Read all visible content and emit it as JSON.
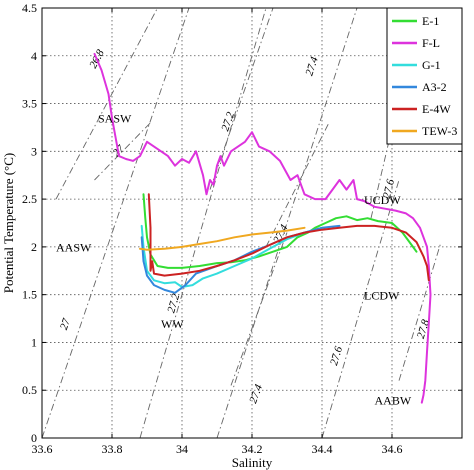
{
  "chart_data": {
    "type": "line",
    "xlabel": "Salinity",
    "ylabel": "Potential Temperature (°C)",
    "xlim": [
      33.6,
      34.8
    ],
    "ylim": [
      0,
      4.5
    ],
    "xticks": [
      "33.6",
      "33.8",
      "34",
      "34.2",
      "34.4",
      "34.6"
    ],
    "yticks": [
      "0",
      "0.5",
      "1",
      "1.5",
      "2",
      "2.5",
      "3",
      "3.5",
      "4",
      "4.5"
    ],
    "grid": true,
    "legend_position": "top-right",
    "water_mass_labels": [
      {
        "text": "SASW",
        "x": 33.76,
        "y": 3.3
      },
      {
        "text": "AASW",
        "x": 33.64,
        "y": 1.95
      },
      {
        "text": "WW",
        "x": 33.94,
        "y": 1.15
      },
      {
        "text": "UCDW",
        "x": 34.52,
        "y": 2.45
      },
      {
        "text": "LCDW",
        "x": 34.52,
        "y": 1.45
      },
      {
        "text": "AABW",
        "x": 34.55,
        "y": 0.35
      }
    ],
    "isopycnals": [
      {
        "label": "26.8",
        "x0": 33.64,
        "y0": 2.5,
        "x1": 33.93,
        "y1": 4.5,
        "lx": 33.765,
        "ly": 3.95
      },
      {
        "label": "27",
        "x0": 33.6,
        "y0": 0,
        "x1": 34.02,
        "y1": 4.5,
        "lx": 33.675,
        "ly": 1.18
      },
      {
        "label": "27",
        "x0": 33.75,
        "y0": 2.7,
        "x1": 33.91,
        "y1": 3.3,
        "lx": 33.825,
        "ly": 2.98
      },
      {
        "label": "27.2",
        "x0": 33.88,
        "y0": 0,
        "x1": 34.24,
        "y1": 4.5,
        "lx": 33.985,
        "ly": 1.4
      },
      {
        "label": "27.2",
        "x0": 34.08,
        "y0": 2.6,
        "x1": 34.26,
        "y1": 4.5,
        "lx": 34.14,
        "ly": 3.3
      },
      {
        "label": "27.4",
        "x0": 34.1,
        "y0": 0,
        "x1": 34.5,
        "y1": 4.5,
        "lx": 34.38,
        "ly": 3.88
      },
      {
        "label": "27.4",
        "x0": 34.14,
        "y0": 0.55,
        "x1": 34.3,
        "y1": 2.15,
        "lx": 34.22,
        "ly": 0.45
      },
      {
        "label": "27.4",
        "x0": 34.24,
        "y0": 2.0,
        "x1": 34.42,
        "y1": 3.3,
        "lx": 34.29,
        "ly": 2.12
      },
      {
        "label": "27.6",
        "x0": 34.4,
        "y0": 0,
        "x1": 34.62,
        "y1": 2.7,
        "lx": 34.45,
        "ly": 0.85
      },
      {
        "label": "27.6",
        "x0": 34.54,
        "y0": 2.3,
        "x1": 34.68,
        "y1": 4.5,
        "lx": 34.6,
        "ly": 2.6
      },
      {
        "label": "27.8",
        "x0": 34.62,
        "y0": 0.6,
        "x1": 34.74,
        "y1": 2.05,
        "lx": 34.698,
        "ly": 1.13
      }
    ],
    "series": [
      {
        "name": "E-1",
        "color": "#33dd33",
        "x": [
          33.89,
          33.895,
          33.9,
          33.91,
          33.93,
          33.96,
          34.0,
          34.05,
          34.1,
          34.14,
          34.18,
          34.22,
          34.26,
          34.3,
          34.33,
          34.36,
          34.38,
          34.41,
          34.44,
          34.47,
          34.5,
          34.53,
          34.56,
          34.6,
          34.63,
          34.66,
          34.67
        ],
        "y": [
          2.55,
          2.3,
          2.1,
          1.92,
          1.8,
          1.78,
          1.78,
          1.8,
          1.83,
          1.84,
          1.86,
          1.9,
          1.95,
          2.0,
          2.1,
          2.15,
          2.2,
          2.25,
          2.3,
          2.32,
          2.28,
          2.3,
          2.27,
          2.25,
          2.15,
          2.0,
          1.95
        ]
      },
      {
        "name": "F-L",
        "color": "#dd33dd",
        "x": [
          33.75,
          33.77,
          33.79,
          33.8,
          33.81,
          33.82,
          33.84,
          33.86,
          33.88,
          33.9,
          33.92,
          33.94,
          33.96,
          33.98,
          34.0,
          34.02,
          34.04,
          34.06,
          34.07,
          34.08,
          34.09,
          34.1,
          34.11,
          34.12,
          34.14,
          34.16,
          34.18,
          34.2,
          34.22,
          34.25,
          34.28,
          34.31,
          34.33,
          34.35,
          34.38,
          34.41,
          34.43,
          34.45,
          34.47,
          34.49,
          34.5,
          34.52,
          34.55,
          34.58,
          34.61,
          34.64,
          34.66,
          34.68,
          34.69,
          34.7,
          34.705,
          34.71,
          34.705,
          34.7,
          34.695,
          34.69,
          34.685
        ],
        "y": [
          4.02,
          3.85,
          3.6,
          3.35,
          3.15,
          2.95,
          2.92,
          2.9,
          2.95,
          3.1,
          3.05,
          3.0,
          2.95,
          2.85,
          2.92,
          2.88,
          3.0,
          2.75,
          2.55,
          2.7,
          2.65,
          2.85,
          2.95,
          2.85,
          3.0,
          3.05,
          3.1,
          3.2,
          3.05,
          3.0,
          2.9,
          2.7,
          2.75,
          2.55,
          2.5,
          2.5,
          2.6,
          2.7,
          2.6,
          2.7,
          2.5,
          2.48,
          2.42,
          2.4,
          2.38,
          2.35,
          2.3,
          2.2,
          2.1,
          2.0,
          1.8,
          1.5,
          1.2,
          0.9,
          0.6,
          0.45,
          0.37
        ]
      },
      {
        "name": "G-1",
        "color": "#33dddd",
        "x": [
          33.885,
          33.89,
          33.9,
          33.92,
          33.95,
          33.98,
          34.0,
          34.03,
          34.06,
          34.1,
          34.15,
          34.2,
          34.25,
          34.3,
          34.35,
          34.4
        ],
        "y": [
          2.22,
          2.0,
          1.75,
          1.65,
          1.62,
          1.63,
          1.58,
          1.6,
          1.67,
          1.72,
          1.8,
          1.88,
          1.98,
          2.08,
          2.15,
          2.2
        ]
      },
      {
        "name": "A3-2",
        "color": "#3388dd",
        "x": [
          33.885,
          33.89,
          33.9,
          33.92,
          33.95,
          33.98,
          34.01,
          34.04,
          34.07,
          34.1,
          34.15,
          34.2,
          34.25,
          34.3,
          34.35,
          34.4,
          34.45
        ],
        "y": [
          2.1,
          1.85,
          1.7,
          1.6,
          1.55,
          1.52,
          1.6,
          1.72,
          1.76,
          1.8,
          1.86,
          1.95,
          2.02,
          2.1,
          2.15,
          2.2,
          2.22
        ]
      },
      {
        "name": "E-4W",
        "color": "#cc2222",
        "x": [
          33.905,
          33.91,
          33.91,
          33.915,
          33.92,
          33.95,
          34.0,
          34.05,
          34.1,
          34.15,
          34.2,
          34.25,
          34.3,
          34.35,
          34.4,
          34.45,
          34.5,
          34.55,
          34.6,
          34.64,
          34.67,
          34.69,
          34.7,
          34.705
        ],
        "y": [
          2.55,
          2.2,
          1.75,
          1.85,
          1.72,
          1.7,
          1.72,
          1.75,
          1.8,
          1.86,
          1.93,
          2.02,
          2.1,
          2.15,
          2.18,
          2.2,
          2.22,
          2.22,
          2.2,
          2.15,
          2.05,
          1.9,
          1.8,
          1.65
        ]
      },
      {
        "name": "TEW-3",
        "color": "#f0a820",
        "x": [
          33.88,
          33.9,
          33.95,
          34.0,
          34.05,
          34.1,
          34.15,
          34.2,
          34.25,
          34.3,
          34.35
        ],
        "y": [
          1.98,
          1.97,
          1.98,
          2.0,
          2.03,
          2.06,
          2.1,
          2.13,
          2.15,
          2.17,
          2.2
        ]
      }
    ]
  }
}
